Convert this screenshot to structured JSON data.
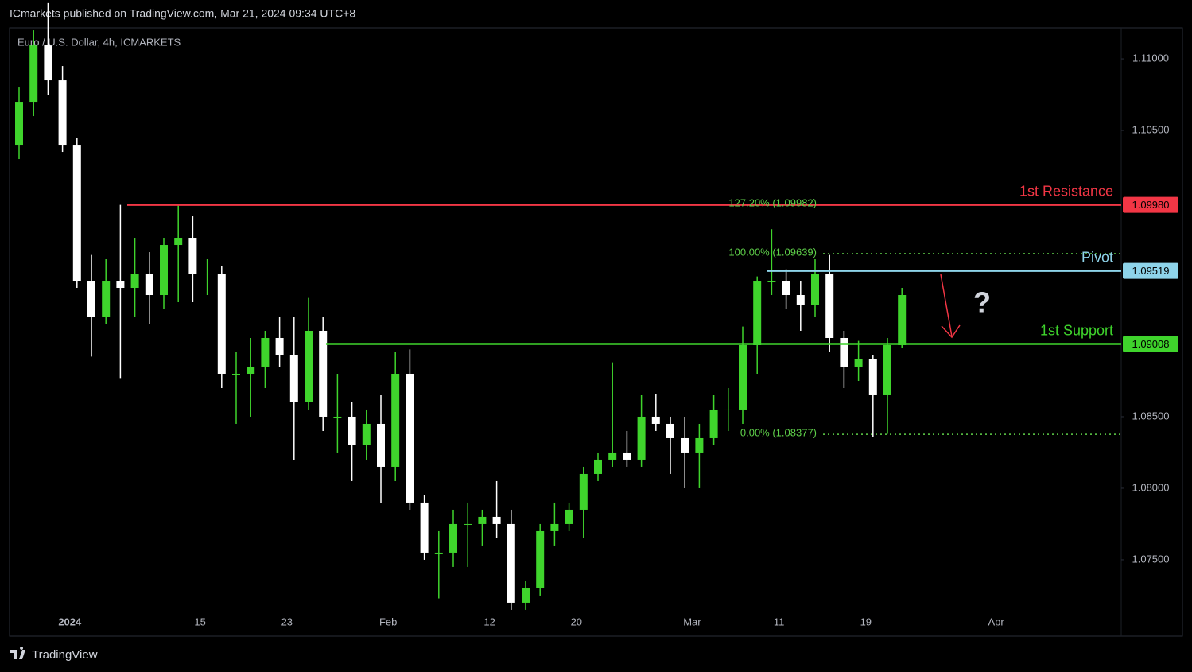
{
  "header": {
    "text": "ICmarkets published on TradingView.com, Mar 21, 2024 09:34 UTC+8"
  },
  "footer": {
    "brand": "TradingView"
  },
  "chart_data": {
    "type": "candlestick",
    "title": "Euro / U.S. Dollar, 4h, ICMARKETS",
    "categories": [
      null,
      null,
      null,
      null,
      "2024",
      null,
      null,
      null,
      null,
      null,
      null,
      null,
      null,
      "15",
      null,
      null,
      null,
      null,
      null,
      "23",
      null,
      null,
      null,
      null,
      null,
      null,
      "Feb",
      null,
      null,
      null,
      null,
      null,
      null,
      "12",
      null,
      null,
      null,
      null,
      null,
      "20",
      null,
      null,
      null,
      null,
      null,
      null,
      null,
      "Mar",
      null,
      null,
      null,
      null,
      null,
      "11",
      null,
      null,
      null,
      null,
      null,
      "19",
      null,
      null,
      null,
      null,
      null,
      null,
      null,
      null,
      "Apr",
      null,
      null,
      null,
      null,
      null,
      null,
      null,
      null
    ],
    "open": [
      1.104,
      1.107,
      1.111,
      1.1085,
      1.104,
      1.0945,
      1.092,
      1.0945,
      1.094,
      1.095,
      1.0935,
      1.097,
      1.0975,
      1.095,
      1.095,
      1.088,
      1.088,
      1.0885,
      1.0905,
      1.0893,
      1.086,
      1.091,
      1.085,
      1.085,
      1.083,
      1.0845,
      1.0815,
      1.088,
      1.079,
      1.0755,
      1.0755,
      1.0775,
      1.0775,
      1.078,
      1.0775,
      1.072,
      1.073,
      1.077,
      1.0775,
      1.0785,
      1.081,
      1.082,
      1.0825,
      1.082,
      1.085,
      1.0845,
      1.0835,
      1.0825,
      1.0835,
      1.0855,
      1.0855,
      1.09,
      1.0945,
      1.0945,
      1.0935,
      1.0928,
      1.095,
      1.0905,
      1.0885,
      1.089,
      1.0865,
      1.09,
      null,
      null,
      null,
      null,
      null,
      null,
      null,
      null,
      null,
      null,
      null,
      null,
      null,
      null,
      null
    ],
    "high": [
      1.108,
      1.112,
      1.1139,
      1.1095,
      1.1045,
      1.0963,
      1.096,
      1.0998,
      1.0975,
      1.0965,
      1.0975,
      1.0998,
      1.099,
      1.096,
      1.0955,
      1.0895,
      1.0905,
      1.091,
      1.092,
      1.092,
      1.0933,
      1.092,
      1.088,
      1.086,
      1.0855,
      1.0865,
      1.0895,
      1.0897,
      1.0795,
      1.077,
      1.0785,
      1.079,
      1.0785,
      1.0805,
      1.0785,
      1.0735,
      1.0775,
      1.079,
      1.079,
      1.0815,
      1.0825,
      1.0888,
      1.084,
      1.0865,
      1.0866,
      1.085,
      1.085,
      1.0845,
      1.0865,
      1.087,
      1.0913,
      1.0948,
      1.0981,
      1.0953,
      1.0945,
      1.096,
      1.0963,
      1.091,
      1.0903,
      1.0893,
      1.0905,
      1.094,
      null,
      null,
      null,
      null,
      null,
      null,
      null,
      null,
      null,
      null,
      null,
      null,
      null,
      null,
      null
    ],
    "low": [
      1.103,
      1.106,
      1.1075,
      1.1035,
      1.094,
      1.0892,
      1.0915,
      1.0877,
      1.092,
      1.0915,
      1.0925,
      1.093,
      1.093,
      1.0935,
      1.087,
      1.0845,
      1.085,
      1.087,
      1.0885,
      1.082,
      1.0855,
      1.084,
      1.0825,
      1.0805,
      1.082,
      1.079,
      1.0805,
      1.0785,
      1.075,
      1.0723,
      1.0745,
      1.0745,
      1.076,
      1.0765,
      1.0715,
      1.0715,
      1.0725,
      1.076,
      1.077,
      1.0765,
      1.0805,
      1.0815,
      1.0815,
      1.0815,
      1.084,
      1.081,
      1.08,
      1.08,
      1.083,
      1.084,
      1.0845,
      1.088,
      1.0935,
      1.0925,
      1.091,
      1.092,
      1.0895,
      1.087,
      1.0875,
      1.0836,
      1.0838,
      1.0898,
      null,
      null,
      null,
      null,
      null,
      null,
      null,
      null,
      null,
      null,
      null,
      null,
      null,
      null,
      null
    ],
    "close": [
      1.107,
      1.111,
      1.1085,
      1.104,
      1.0945,
      1.092,
      1.0945,
      1.094,
      1.095,
      1.0935,
      1.097,
      1.0975,
      1.095,
      1.095,
      1.088,
      1.088,
      1.0885,
      1.0905,
      1.0893,
      1.086,
      1.091,
      1.085,
      1.085,
      1.083,
      1.0845,
      1.0815,
      1.088,
      1.079,
      1.0755,
      1.0755,
      1.0775,
      1.0775,
      1.078,
      1.0775,
      1.072,
      1.073,
      1.077,
      1.0775,
      1.0785,
      1.081,
      1.082,
      1.0825,
      1.082,
      1.085,
      1.0845,
      1.0835,
      1.0825,
      1.0835,
      1.0855,
      1.0855,
      1.09,
      1.0945,
      1.0945,
      1.0935,
      1.0928,
      1.095,
      1.0905,
      1.0885,
      1.089,
      1.0865,
      1.09,
      1.0935,
      null,
      null,
      null,
      null,
      null,
      null,
      null,
      null,
      null,
      null,
      null,
      null,
      null,
      null,
      null
    ],
    "up_color": "#3fd42c",
    "down_color": "#ffffff",
    "ylim": [
      1.07133,
      1.11217
    ],
    "yticks": [
      {
        "value": 1.075,
        "label": "1.07500"
      },
      {
        "value": 1.08,
        "label": "1.08000"
      },
      {
        "value": 1.085,
        "label": "1.08500"
      },
      {
        "value": 1.105,
        "label": "1.10500"
      },
      {
        "value": 1.11,
        "label": "1.11000"
      }
    ],
    "grid": false,
    "levels": [
      {
        "name": "1st Resistance",
        "value": 1.0998,
        "label": "1.09980",
        "color": "#f23645"
      },
      {
        "name": "Pivot",
        "value": 1.09519,
        "label": "1.09519",
        "color": "#8ed4ea"
      },
      {
        "name": "1st Support",
        "value": 1.09008,
        "label": "1.09008",
        "color": "#3fd42c"
      }
    ],
    "fib_color": "#5fd14a",
    "fib_levels": [
      {
        "value": 1.09982,
        "label": "127.20% (1.09982)"
      },
      {
        "value": 1.09639,
        "label": "100.00% (1.09639)"
      },
      {
        "value": 1.08377,
        "label": "0.00% (1.08377)"
      }
    ],
    "annotation": "?"
  }
}
